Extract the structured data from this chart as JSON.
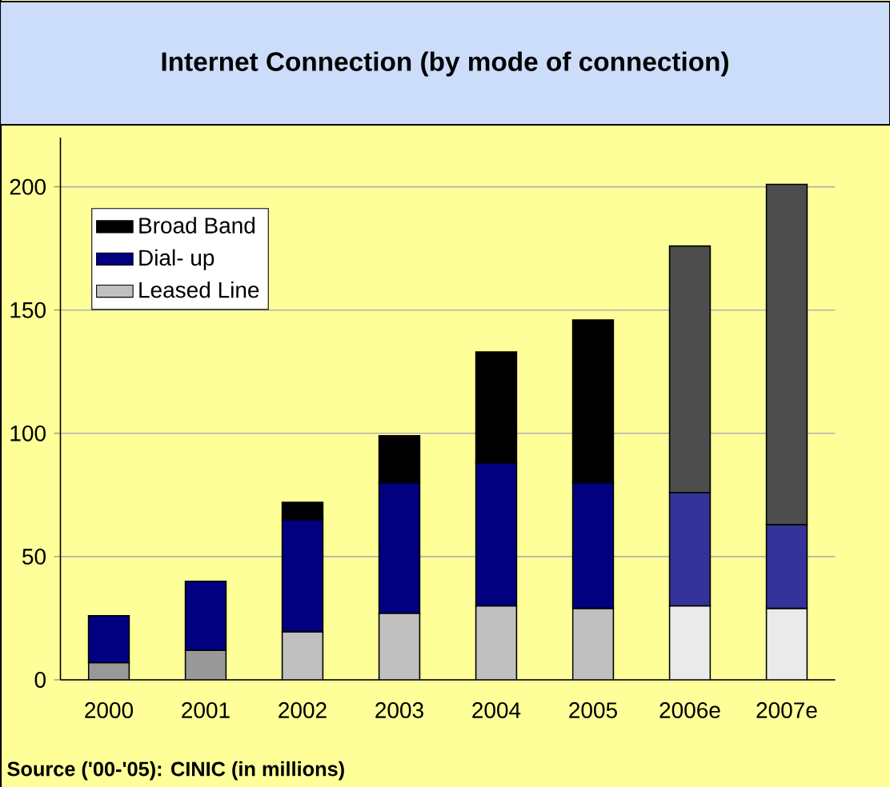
{
  "chart_data": {
    "type": "bar",
    "title": "Internet Connection (by mode of connection)",
    "categories": [
      "2000",
      "2001",
      "2002",
      "2003",
      "2004",
      "2005",
      "2006e",
      "2007e"
    ],
    "stacked": true,
    "ylim": [
      0,
      220
    ],
    "yticks": [
      0,
      50,
      100,
      150,
      200
    ],
    "grid": "y",
    "legend": "top left",
    "series": [
      {
        "name": "Leased Line",
        "color": "#c0c0c0",
        "colors": [
          "#999999",
          "#999999",
          "#c0c0c0",
          "#c0c0c0",
          "#c0c0c0",
          "#c0c0c0",
          "#eaeaea",
          "#eaeaea"
        ],
        "values": [
          7,
          12,
          19.5,
          27,
          30,
          29,
          30,
          29
        ]
      },
      {
        "name": "Dial- up",
        "color": "#000080",
        "colors": [
          "#000080",
          "#000080",
          "#000080",
          "#000080",
          "#000080",
          "#000080",
          "#333399",
          "#333399"
        ],
        "values": [
          19,
          28,
          45.5,
          53,
          58,
          51,
          46,
          34
        ]
      },
      {
        "name": "Broad Band",
        "color": "#000000",
        "colors": [
          "#000000",
          "#000000",
          "#000000",
          "#000000",
          "#000000",
          "#000000",
          "#4d4d4d",
          "#4d4d4d"
        ],
        "values": [
          null,
          null,
          7,
          19,
          45,
          66,
          100,
          138
        ]
      }
    ],
    "annotations": [
      "Source ('00-'05): CINIC (in millions)"
    ]
  }
}
